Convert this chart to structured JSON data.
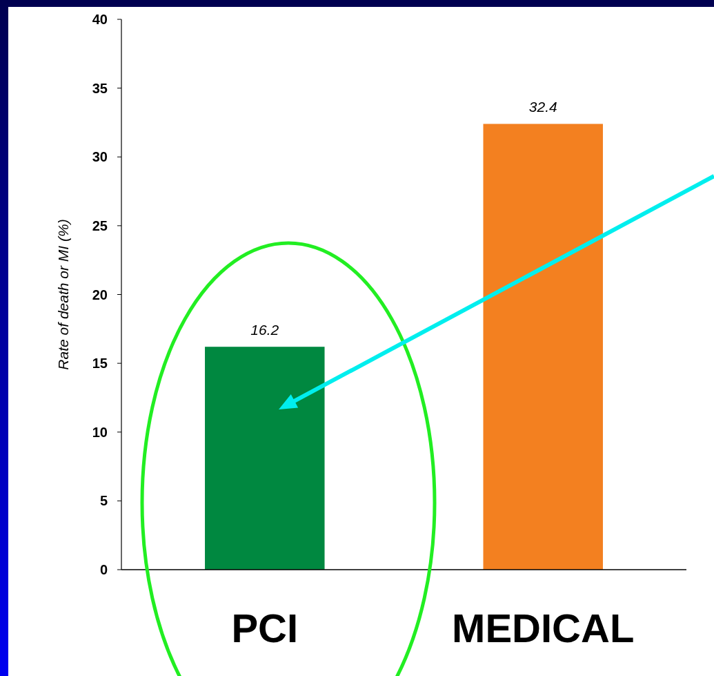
{
  "chart_data": {
    "type": "bar",
    "ylabel": "Rate of death or MI (%)",
    "categories": [
      "PCI",
      "MEDICAL"
    ],
    "values": [
      16.2,
      32.4
    ],
    "colors": [
      "#008840",
      "#f38020"
    ],
    "ylim": [
      0,
      40
    ],
    "yticks": [
      0,
      5,
      10,
      15,
      20,
      25,
      30,
      35,
      40
    ],
    "data_labels": true,
    "grid": false
  }
}
